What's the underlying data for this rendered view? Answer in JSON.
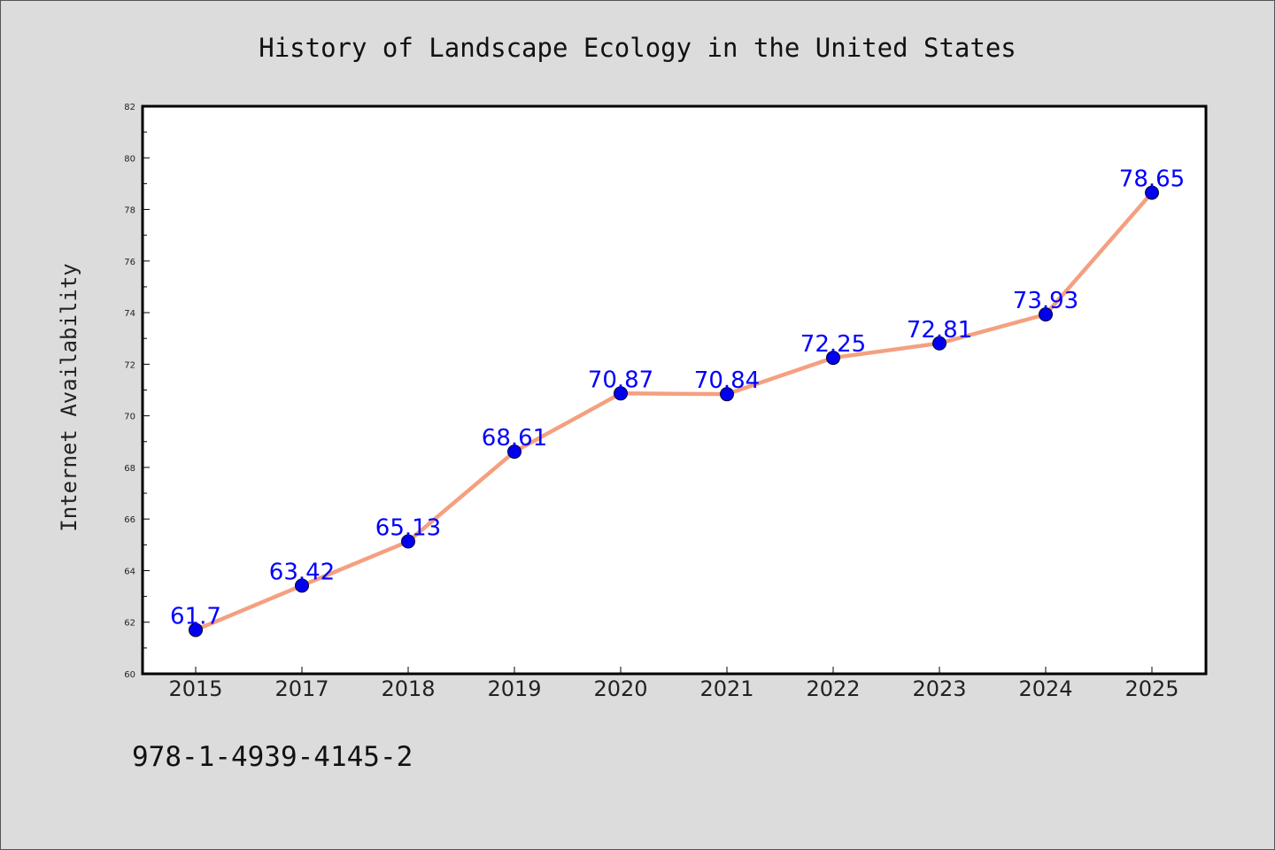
{
  "chart_data": {
    "type": "line",
    "title": "History of Landscape Ecology in the United States",
    "xlabel": "",
    "ylabel": "Internet Availability",
    "categories": [
      "2015",
      "2017",
      "2018",
      "2019",
      "2020",
      "2021",
      "2022",
      "2023",
      "2024",
      "2025"
    ],
    "series": [
      {
        "values": [
          61.7,
          63.42,
          65.13,
          68.61,
          70.87,
          70.84,
          72.25,
          72.81,
          73.93,
          78.65
        ],
        "labels": [
          "61.7",
          "63.42",
          "65.13",
          "68.61",
          "70.87",
          "70.84",
          "72.25",
          "72.81",
          "73.93",
          "78.65"
        ]
      }
    ],
    "ylim": [
      60,
      82
    ],
    "yticks": [
      "60",
      "62",
      "64",
      "66",
      "68",
      "70",
      "72",
      "74",
      "76",
      "78",
      "80",
      "82"
    ],
    "grid": false,
    "legend": "none",
    "colors": {
      "line": "#f4a080",
      "marker": "#0000ee",
      "label": "#0000ff",
      "plot_bg": "#ffffff",
      "page_bg": "#dcdcdc"
    }
  },
  "footer": {
    "isbn": "978-1-4939-4145-2"
  }
}
